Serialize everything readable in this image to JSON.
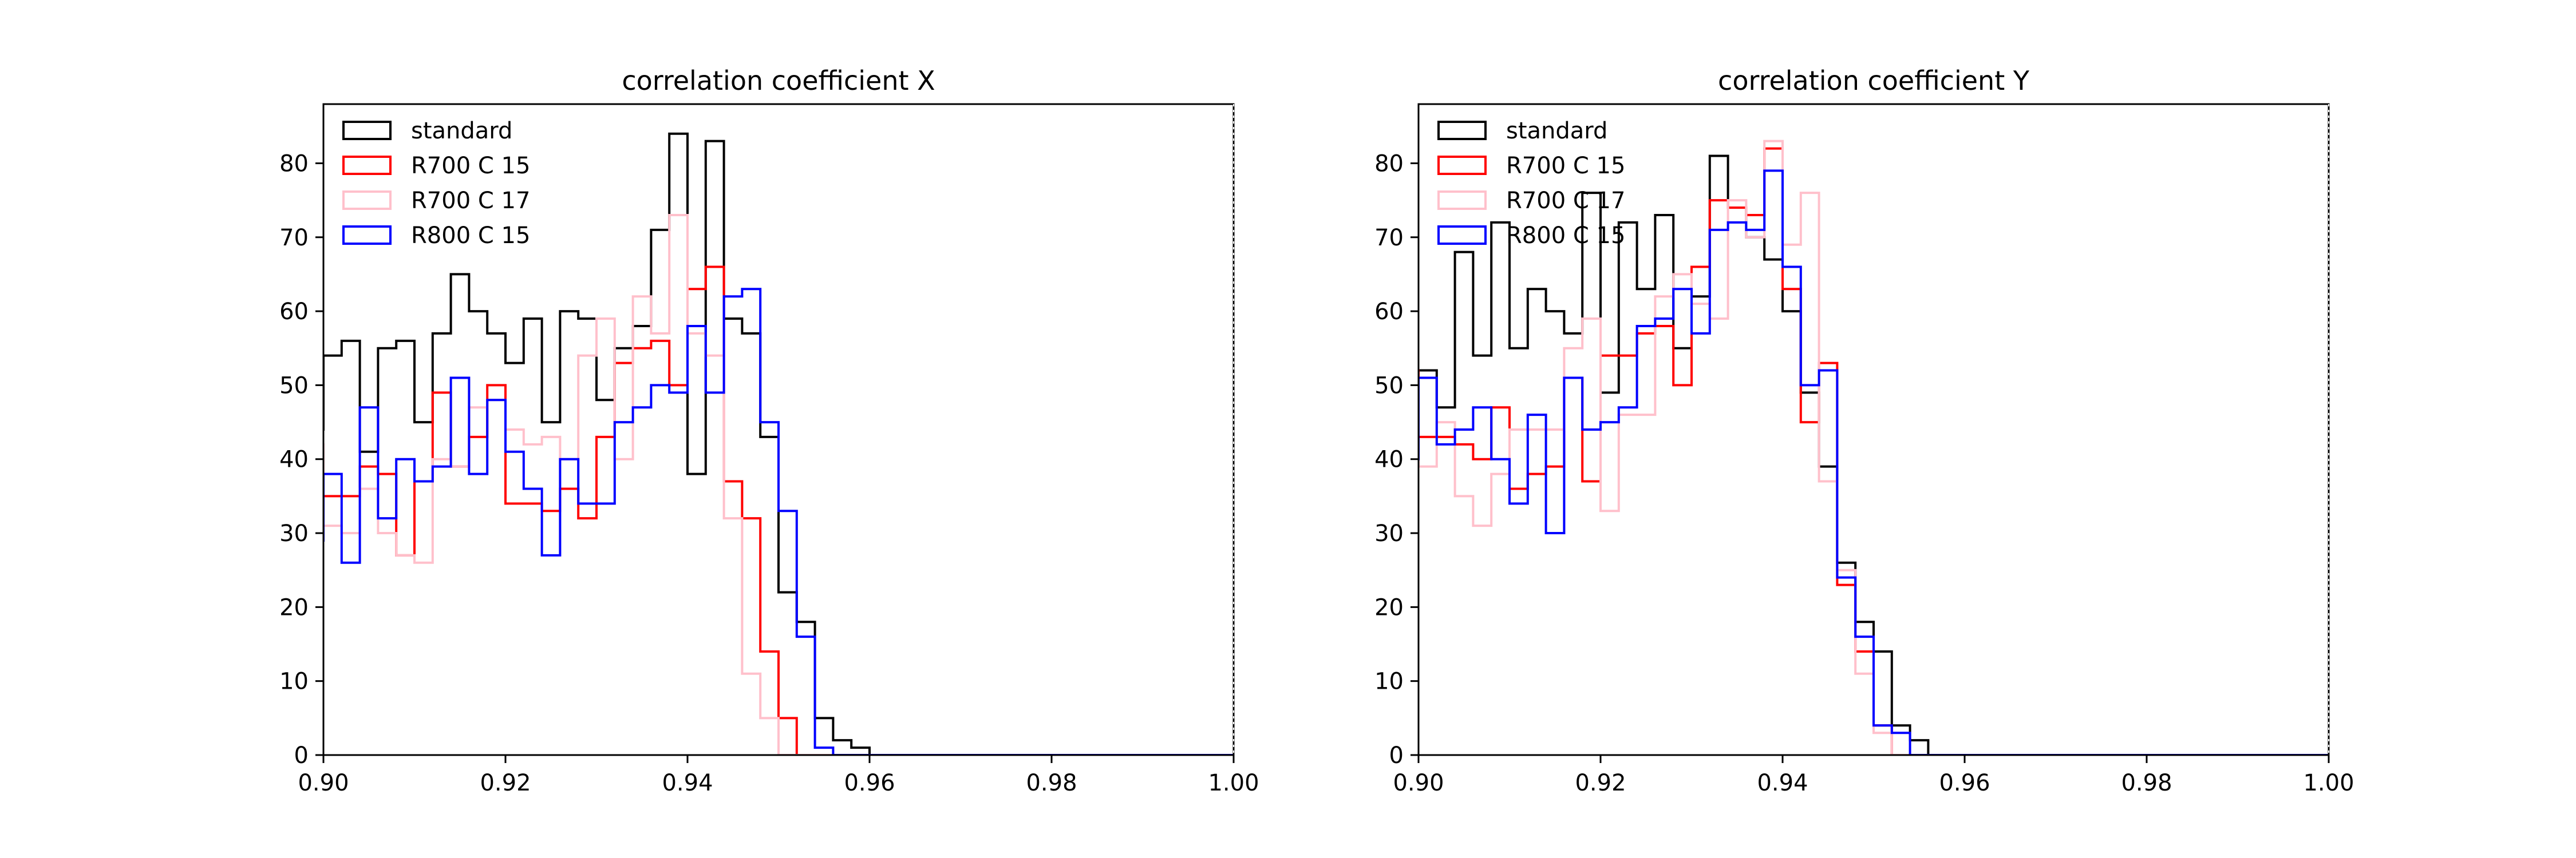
{
  "chart_data": [
    {
      "type": "histogram",
      "title": "correlation coefficient X",
      "xlabel": "",
      "ylabel": "",
      "xlim": [
        0.9,
        1.0
      ],
      "ylim": [
        0,
        88
      ],
      "bin_start": 0.9,
      "bin_width": 0.002,
      "xticks": [
        "0.90",
        "0.92",
        "0.94",
        "0.96",
        "0.98",
        "1.00"
      ],
      "xtick_values": [
        0.9,
        0.92,
        0.94,
        0.96,
        0.98,
        1.0
      ],
      "yticks": [
        0,
        10,
        20,
        30,
        40,
        50,
        60,
        70,
        80
      ],
      "grid": false,
      "legend_position": "top-left",
      "series": [
        {
          "name": "standard",
          "color": "#000000",
          "values": [
            54,
            56,
            41,
            55,
            56,
            45,
            57,
            65,
            60,
            57,
            53,
            59,
            45,
            60,
            59,
            48,
            55,
            58,
            71,
            84,
            38,
            83,
            59,
            57,
            43,
            22,
            18,
            5,
            2,
            1,
            0,
            0,
            0,
            0,
            0,
            0,
            0,
            0,
            0,
            0,
            0,
            0,
            0,
            0,
            0,
            0,
            0,
            0,
            0,
            0
          ]
        },
        {
          "name": "R700 C 15",
          "color": "#ff0000",
          "values": [
            35,
            35,
            39,
            38,
            27,
            37,
            49,
            39,
            43,
            50,
            34,
            34,
            33,
            36,
            32,
            43,
            53,
            55,
            56,
            50,
            63,
            66,
            37,
            32,
            14,
            5,
            0,
            0,
            0,
            0,
            0,
            0,
            0,
            0,
            0,
            0,
            0,
            0,
            0,
            0,
            0,
            0,
            0,
            0,
            0,
            0,
            0,
            0,
            0,
            0
          ]
        },
        {
          "name": "R700 C 17",
          "color": "#ffc0cb",
          "values": [
            31,
            30,
            36,
            30,
            27,
            26,
            40,
            39,
            47,
            48,
            44,
            42,
            43,
            40,
            54,
            59,
            40,
            62,
            57,
            73,
            57,
            54,
            32,
            11,
            5,
            0,
            0,
            0,
            0,
            0,
            0,
            0,
            0,
            0,
            0,
            0,
            0,
            0,
            0,
            0,
            0,
            0,
            0,
            0,
            0,
            0,
            0,
            0,
            0,
            0
          ]
        },
        {
          "name": "R800 C 15",
          "color": "#0000ff",
          "values": [
            38,
            26,
            47,
            32,
            40,
            37,
            39,
            51,
            38,
            48,
            41,
            36,
            27,
            40,
            34,
            34,
            45,
            47,
            50,
            49,
            58,
            49,
            62,
            63,
            45,
            33,
            16,
            1,
            0,
            0,
            0,
            0,
            0,
            0,
            0,
            0,
            0,
            0,
            0,
            0,
            0,
            0,
            0,
            0,
            0,
            0,
            0,
            0,
            0,
            0
          ]
        }
      ],
      "left_edge_values": [
        44,
        39,
        42,
        29
      ]
    },
    {
      "type": "histogram",
      "title": "correlation coefficient Y",
      "xlabel": "",
      "ylabel": "",
      "xlim": [
        0.9,
        1.0
      ],
      "ylim": [
        0,
        88
      ],
      "bin_start": 0.9,
      "bin_width": 0.002,
      "xticks": [
        "0.90",
        "0.92",
        "0.94",
        "0.96",
        "0.98",
        "1.00"
      ],
      "xtick_values": [
        0.9,
        0.92,
        0.94,
        0.96,
        0.98,
        1.0
      ],
      "yticks": [
        0,
        10,
        20,
        30,
        40,
        50,
        60,
        70,
        80
      ],
      "grid": false,
      "legend_position": "top-left",
      "series": [
        {
          "name": "standard",
          "color": "#000000",
          "values": [
            52,
            47,
            68,
            54,
            72,
            55,
            63,
            60,
            57,
            76,
            49,
            72,
            63,
            73,
            55,
            62,
            81,
            74,
            70,
            67,
            60,
            49,
            39,
            26,
            18,
            14,
            4,
            2,
            0,
            0,
            0,
            0,
            0,
            0,
            0,
            0,
            0,
            0,
            0,
            0,
            0,
            0,
            0,
            0,
            0,
            0,
            0,
            0,
            0,
            0
          ]
        },
        {
          "name": "R700 C 15",
          "color": "#ff0000",
          "values": [
            43,
            43,
            42,
            40,
            47,
            36,
            38,
            39,
            51,
            37,
            54,
            54,
            57,
            58,
            50,
            66,
            75,
            74,
            73,
            82,
            63,
            45,
            53,
            23,
            14,
            4,
            0,
            0,
            0,
            0,
            0,
            0,
            0,
            0,
            0,
            0,
            0,
            0,
            0,
            0,
            0,
            0,
            0,
            0,
            0,
            0,
            0,
            0,
            0,
            0
          ]
        },
        {
          "name": "R700 C 17",
          "color": "#ffc0cb",
          "values": [
            39,
            45,
            35,
            31,
            38,
            44,
            44,
            44,
            55,
            59,
            33,
            46,
            46,
            62,
            65,
            61,
            59,
            75,
            70,
            83,
            69,
            76,
            37,
            25,
            11,
            3,
            0,
            0,
            0,
            0,
            0,
            0,
            0,
            0,
            0,
            0,
            0,
            0,
            0,
            0,
            0,
            0,
            0,
            0,
            0,
            0,
            0,
            0,
            0,
            0
          ]
        },
        {
          "name": "R800 C 15",
          "color": "#0000ff",
          "values": [
            51,
            42,
            44,
            47,
            40,
            34,
            46,
            30,
            51,
            44,
            45,
            47,
            58,
            59,
            63,
            57,
            71,
            72,
            71,
            79,
            66,
            50,
            52,
            24,
            16,
            4,
            3,
            0,
            0,
            0,
            0,
            0,
            0,
            0,
            0,
            0,
            0,
            0,
            0,
            0,
            0,
            0,
            0,
            0,
            0,
            0,
            0,
            0,
            0,
            0
          ]
        }
      ],
      "left_edge_values": [
        44,
        52,
        41,
        40
      ]
    }
  ]
}
